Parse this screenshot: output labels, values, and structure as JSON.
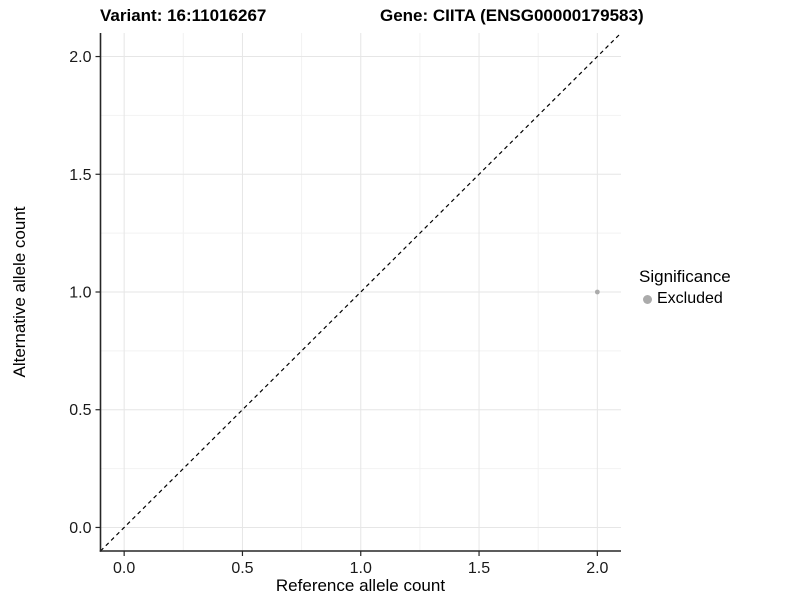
{
  "chart_data": {
    "type": "scatter",
    "title_left": "Variant: 16:11016267",
    "title_right": "Gene: CIITA (ENSG00000179583)",
    "xlabel": "Reference allele count",
    "ylabel": "Alternative allele count",
    "xlim": [
      -0.1,
      2.1
    ],
    "ylim": [
      -0.1,
      2.1
    ],
    "x_ticks": [
      0.0,
      0.5,
      1.0,
      1.5,
      2.0
    ],
    "y_ticks": [
      0.0,
      0.5,
      1.0,
      1.5,
      2.0
    ],
    "x_minor_ticks": [
      0.25,
      0.75,
      1.25,
      1.75
    ],
    "y_minor_ticks": [
      0.25,
      0.75,
      1.25,
      1.75
    ],
    "tick_label_format": "one_decimal",
    "grid": true,
    "points": [
      {
        "x": 2.0,
        "y": 1.0,
        "series": "Excluded"
      }
    ],
    "reference_line": {
      "kind": "abline",
      "slope": 1,
      "intercept": 0,
      "style": "dashed",
      "color": "#000000"
    },
    "legend": {
      "title": "Significance",
      "position": "right",
      "entries": [
        {
          "label": "Excluded",
          "color": "#ababab"
        }
      ]
    },
    "colors": {
      "point": "#ababab",
      "grid_major": "#e6e6e6",
      "grid_minor": "#f2f2f2",
      "axis_line": "#262626",
      "tick_mark": "#262626",
      "tick_label": "#1a1a1a",
      "background": "#ffffff"
    }
  }
}
